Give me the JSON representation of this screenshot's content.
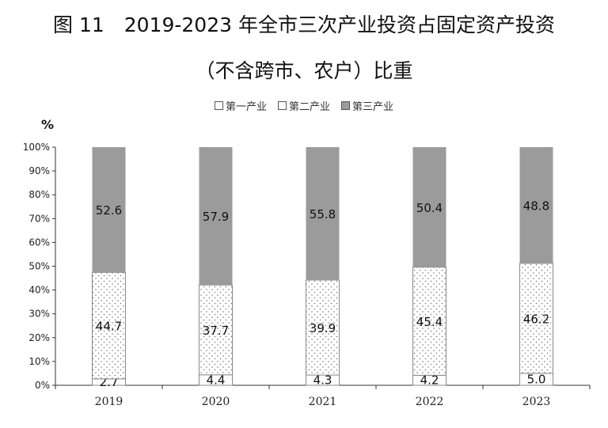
{
  "title_line1": "图 11　2019-2023 年全市三次产业投资占固定资产投资",
  "title_line2": "（不含跨市、农户）比重",
  "y_unit": "%",
  "chart_data": {
    "type": "bar",
    "stacked": true,
    "categories": [
      "2019",
      "2020",
      "2021",
      "2022",
      "2023"
    ],
    "series": [
      {
        "name": "第一产业",
        "values": [
          2.7,
          4.4,
          4.3,
          4.2,
          5.0
        ],
        "color": "#ffffff",
        "pattern": "none"
      },
      {
        "name": "第二产业",
        "values": [
          44.7,
          37.7,
          39.9,
          45.4,
          46.2
        ],
        "color": "#ffffff",
        "pattern": "dots"
      },
      {
        "name": "第三产业",
        "values": [
          52.6,
          57.9,
          55.8,
          50.4,
          48.8
        ],
        "color": "#9b9b9b",
        "pattern": "none"
      }
    ],
    "y_ticks": [
      "0%",
      "10%",
      "20%",
      "30%",
      "40%",
      "50%",
      "60%",
      "70%",
      "80%",
      "90%",
      "100%"
    ],
    "ylim": [
      0,
      100
    ],
    "legend_position": "top-center",
    "grid": false
  }
}
